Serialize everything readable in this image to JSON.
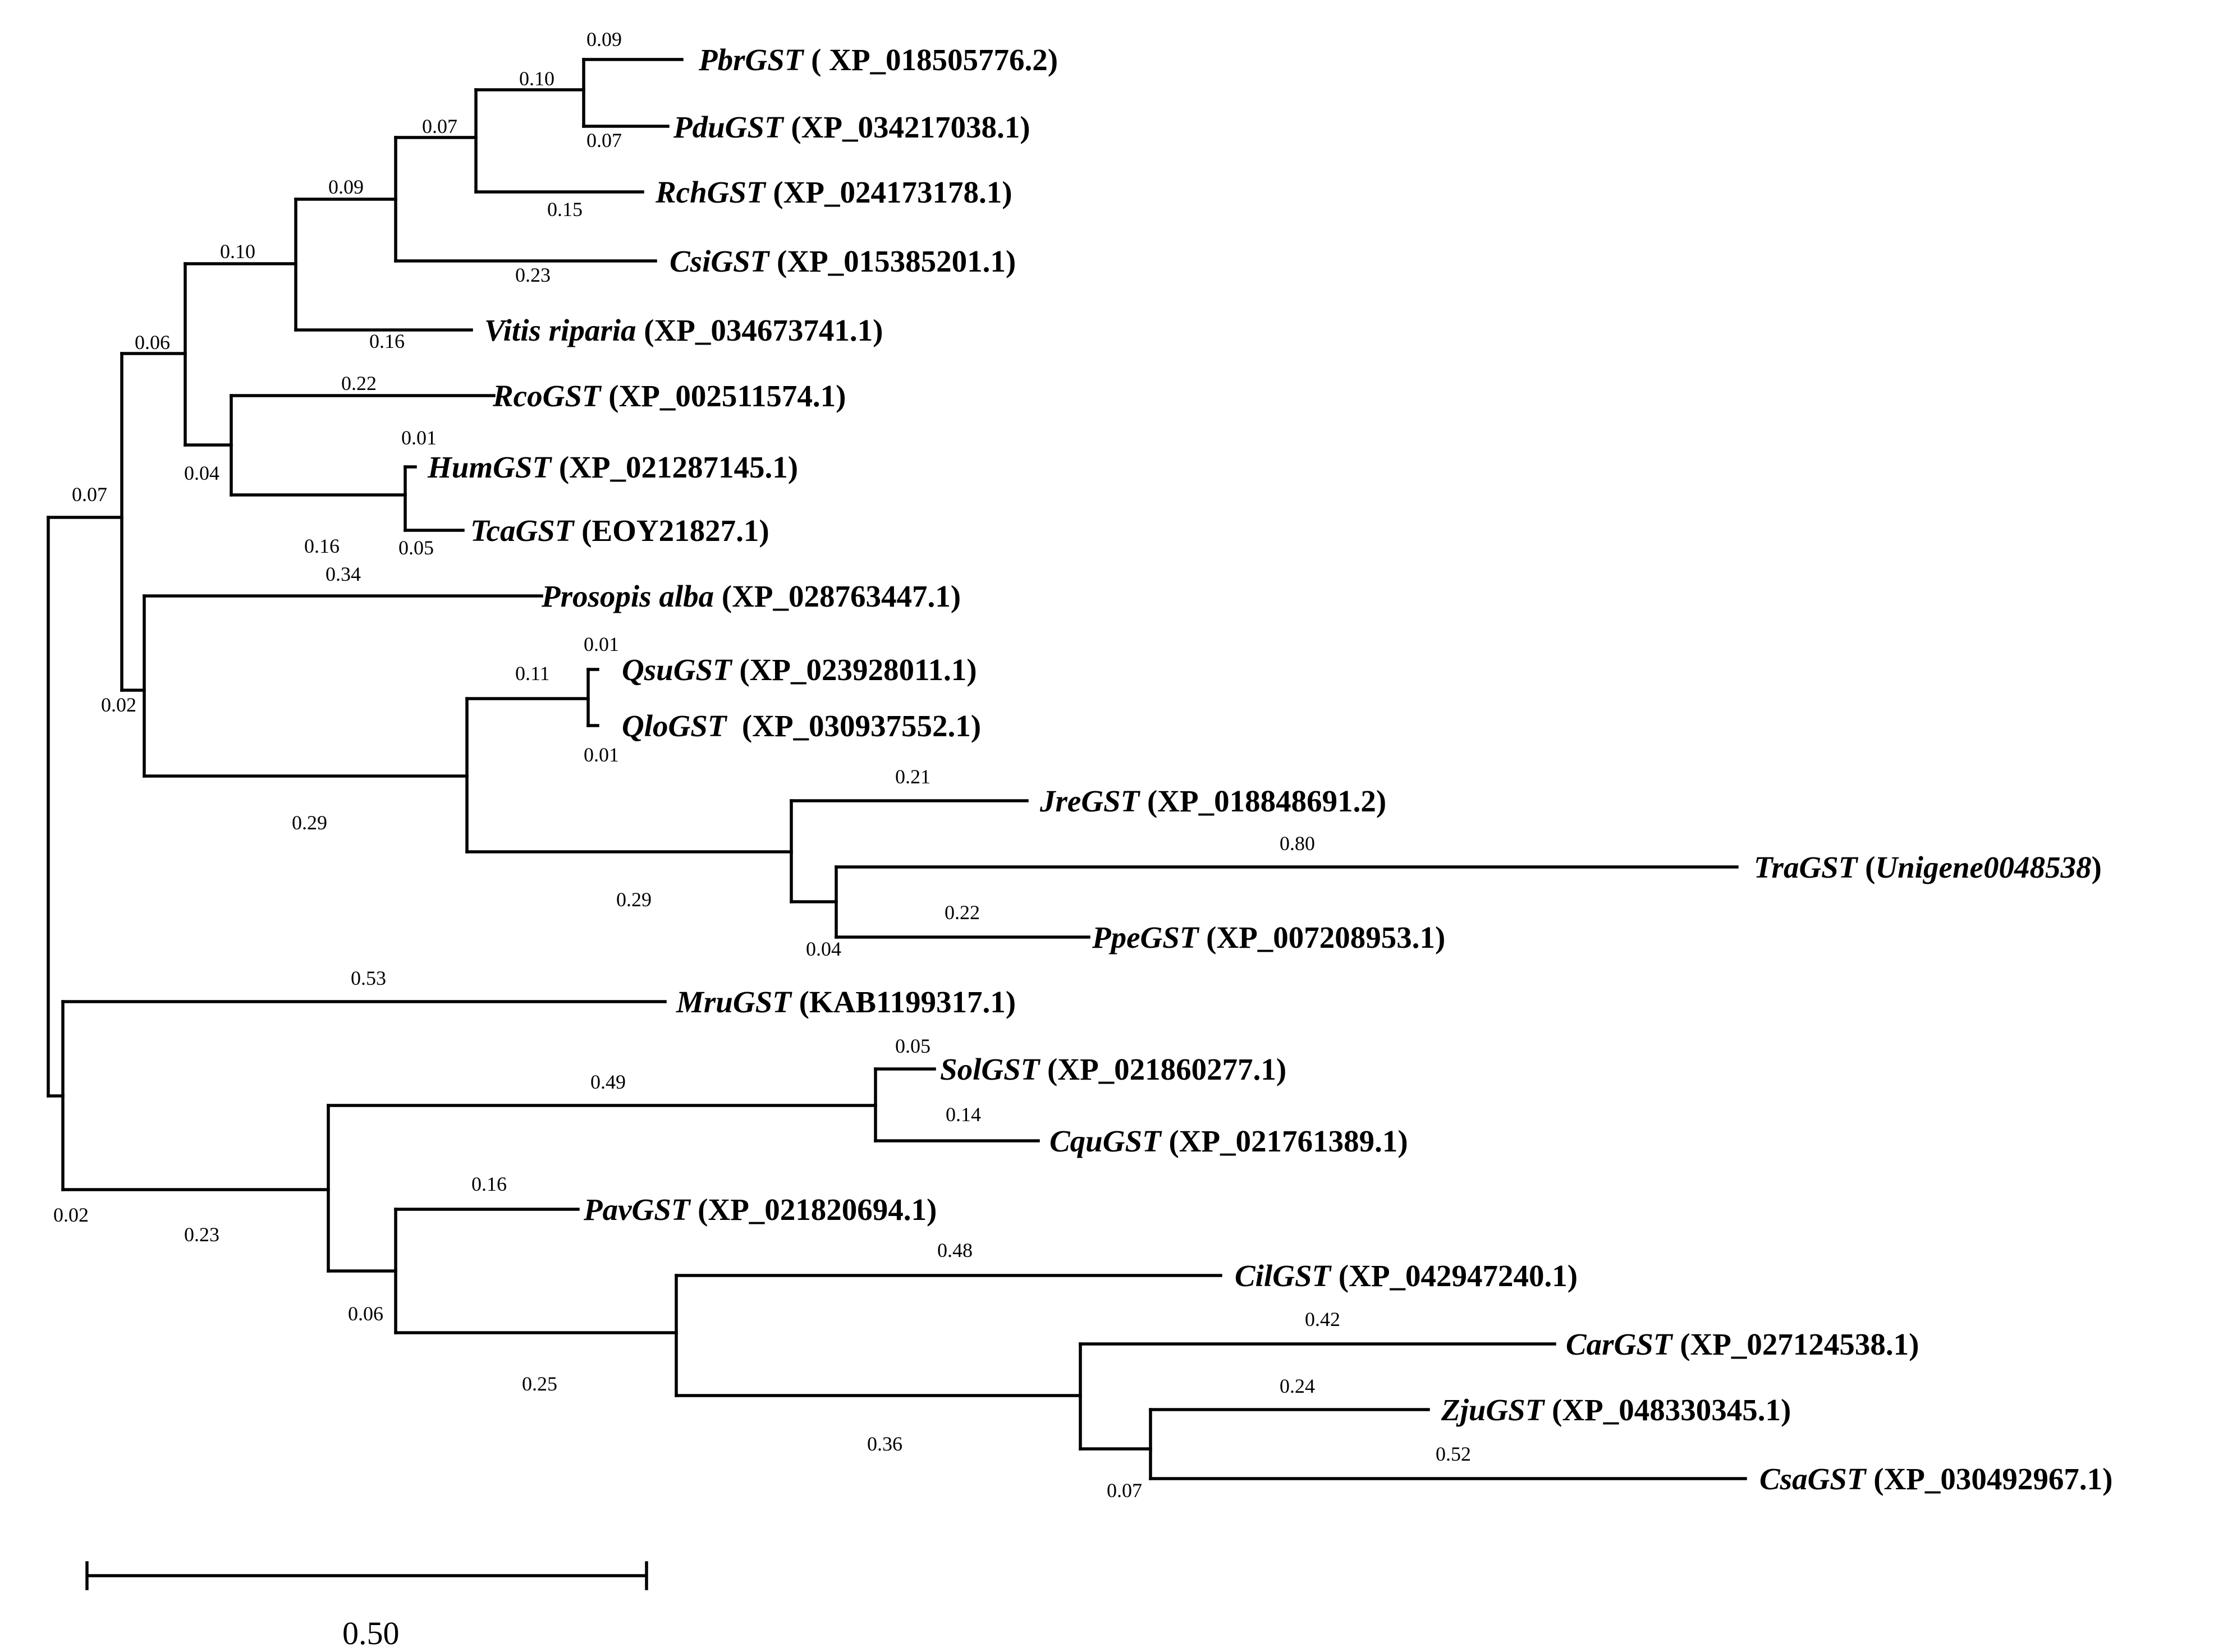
{
  "figure": {
    "type": "phylogenetic-tree",
    "scale_bar_label": "0.50",
    "branch_color": "#000000"
  },
  "taxa": [
    {
      "id": "pbr",
      "species": "PbrGST",
      "accession": " ( XP_018505776.2)"
    },
    {
      "id": "pdu",
      "species": "PduGST",
      "accession": " (XP_034217038.1)"
    },
    {
      "id": "rch",
      "species": "RchGST",
      "accession": " (XP_024173178.1)"
    },
    {
      "id": "csi",
      "species": "CsiGST",
      "accession": " (XP_015385201.1)"
    },
    {
      "id": "vit",
      "species": "Vitis riparia",
      "accession": " (XP_034673741.1)"
    },
    {
      "id": "rco",
      "species": "RcoGST",
      "accession": " (XP_002511574.1)"
    },
    {
      "id": "hum",
      "species": "HumGST",
      "accession": " (XP_021287145.1)"
    },
    {
      "id": "tca",
      "species": "TcaGST",
      "accession": " (EOY21827.1)"
    },
    {
      "id": "pro",
      "species": "Prosopis alba",
      "accession": " (XP_028763447.1)"
    },
    {
      "id": "qsu",
      "species": "QsuGST",
      "accession": " (XP_023928011.1)"
    },
    {
      "id": "qlo",
      "species": "QloGST",
      "accession": "  (XP_030937552.1)"
    },
    {
      "id": "jre",
      "species": "JreGST",
      "accession": " (XP_018848691.2)"
    },
    {
      "id": "tra",
      "species": "TraGST",
      "accession_open": " (",
      "accession_italic": "Unigene0048538",
      "accession_close": ")"
    },
    {
      "id": "ppe",
      "species": "PpeGST",
      "accession": " (XP_007208953.1)"
    },
    {
      "id": "mru",
      "species": "MruGST",
      "accession": " (KAB1199317.1)"
    },
    {
      "id": "sol",
      "species": "SolGST",
      "accession": " (XP_021860277.1)"
    },
    {
      "id": "cqu",
      "species": "CquGST",
      "accession": " (XP_021761389.1)"
    },
    {
      "id": "pav",
      "species": "PavGST",
      "accession": " (XP_021820694.1)"
    },
    {
      "id": "cil",
      "species": "CilGST",
      "accession": " (XP_042947240.1)"
    },
    {
      "id": "car",
      "species": "CarGST",
      "accession": " (XP_027124538.1)"
    },
    {
      "id": "zju",
      "species": "ZjuGST",
      "accession": " (XP_048330345.1)"
    },
    {
      "id": "csa",
      "species": "CsaGST",
      "accession": " (XP_030492967.1)"
    }
  ],
  "branch_lengths": {
    "pbr": "0.09",
    "pdu": "0.07",
    "pbr_pdu": "0.10",
    "rch": "0.15",
    "prunus_rosa": "0.07",
    "csi": "0.23",
    "rosid_a": "0.09",
    "vit": "0.16",
    "rosid_b": "0.10",
    "rco": "0.22",
    "hum": "0.01",
    "tca": "0.05",
    "malvales": "0.16",
    "rco_malv": "0.04",
    "upper": "0.06",
    "root_upper": "0.07",
    "pro": "0.34",
    "fagales_big": "0.02",
    "qsu": "0.01",
    "qlo": "0.01",
    "quercus": "0.11",
    "jre": "0.21",
    "tra": "0.80",
    "ppe": "0.22",
    "tra_ppe": "0.04",
    "jre_group": "0.29",
    "quercus_jre": "0.29",
    "mru": "0.53",
    "sol": "0.05",
    "cqu": "0.14",
    "amaranth": "0.49",
    "pav": "0.16",
    "cil": "0.48",
    "car": "0.42",
    "zju": "0.24",
    "csa": "0.52",
    "zju_csa": "0.07",
    "car_zc": "0.36",
    "cil_group": "0.25",
    "pav_group": "0.06",
    "lower_inner": "0.23",
    "lower": "0.02"
  }
}
